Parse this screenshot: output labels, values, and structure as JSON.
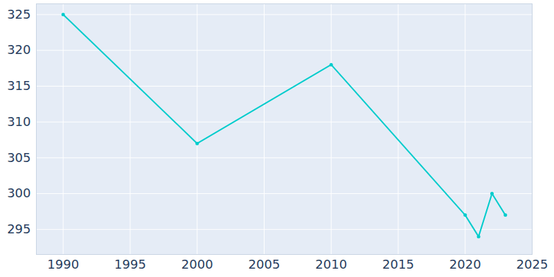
{
  "chart_data": {
    "type": "line",
    "x": [
      1990,
      2000,
      2010,
      2020,
      2021,
      2022,
      2023
    ],
    "values": [
      325,
      307,
      318,
      297,
      294,
      300,
      297
    ],
    "color": "#00cccc",
    "marker": "circle",
    "xlim": [
      1988,
      2025
    ],
    "xticks": [
      1990,
      1995,
      2000,
      2005,
      2010,
      2015,
      2020,
      2025
    ],
    "ylim": [
      291.5,
      326.5
    ],
    "yticks": [
      295,
      300,
      305,
      310,
      315,
      320,
      325
    ],
    "grid": true
  }
}
